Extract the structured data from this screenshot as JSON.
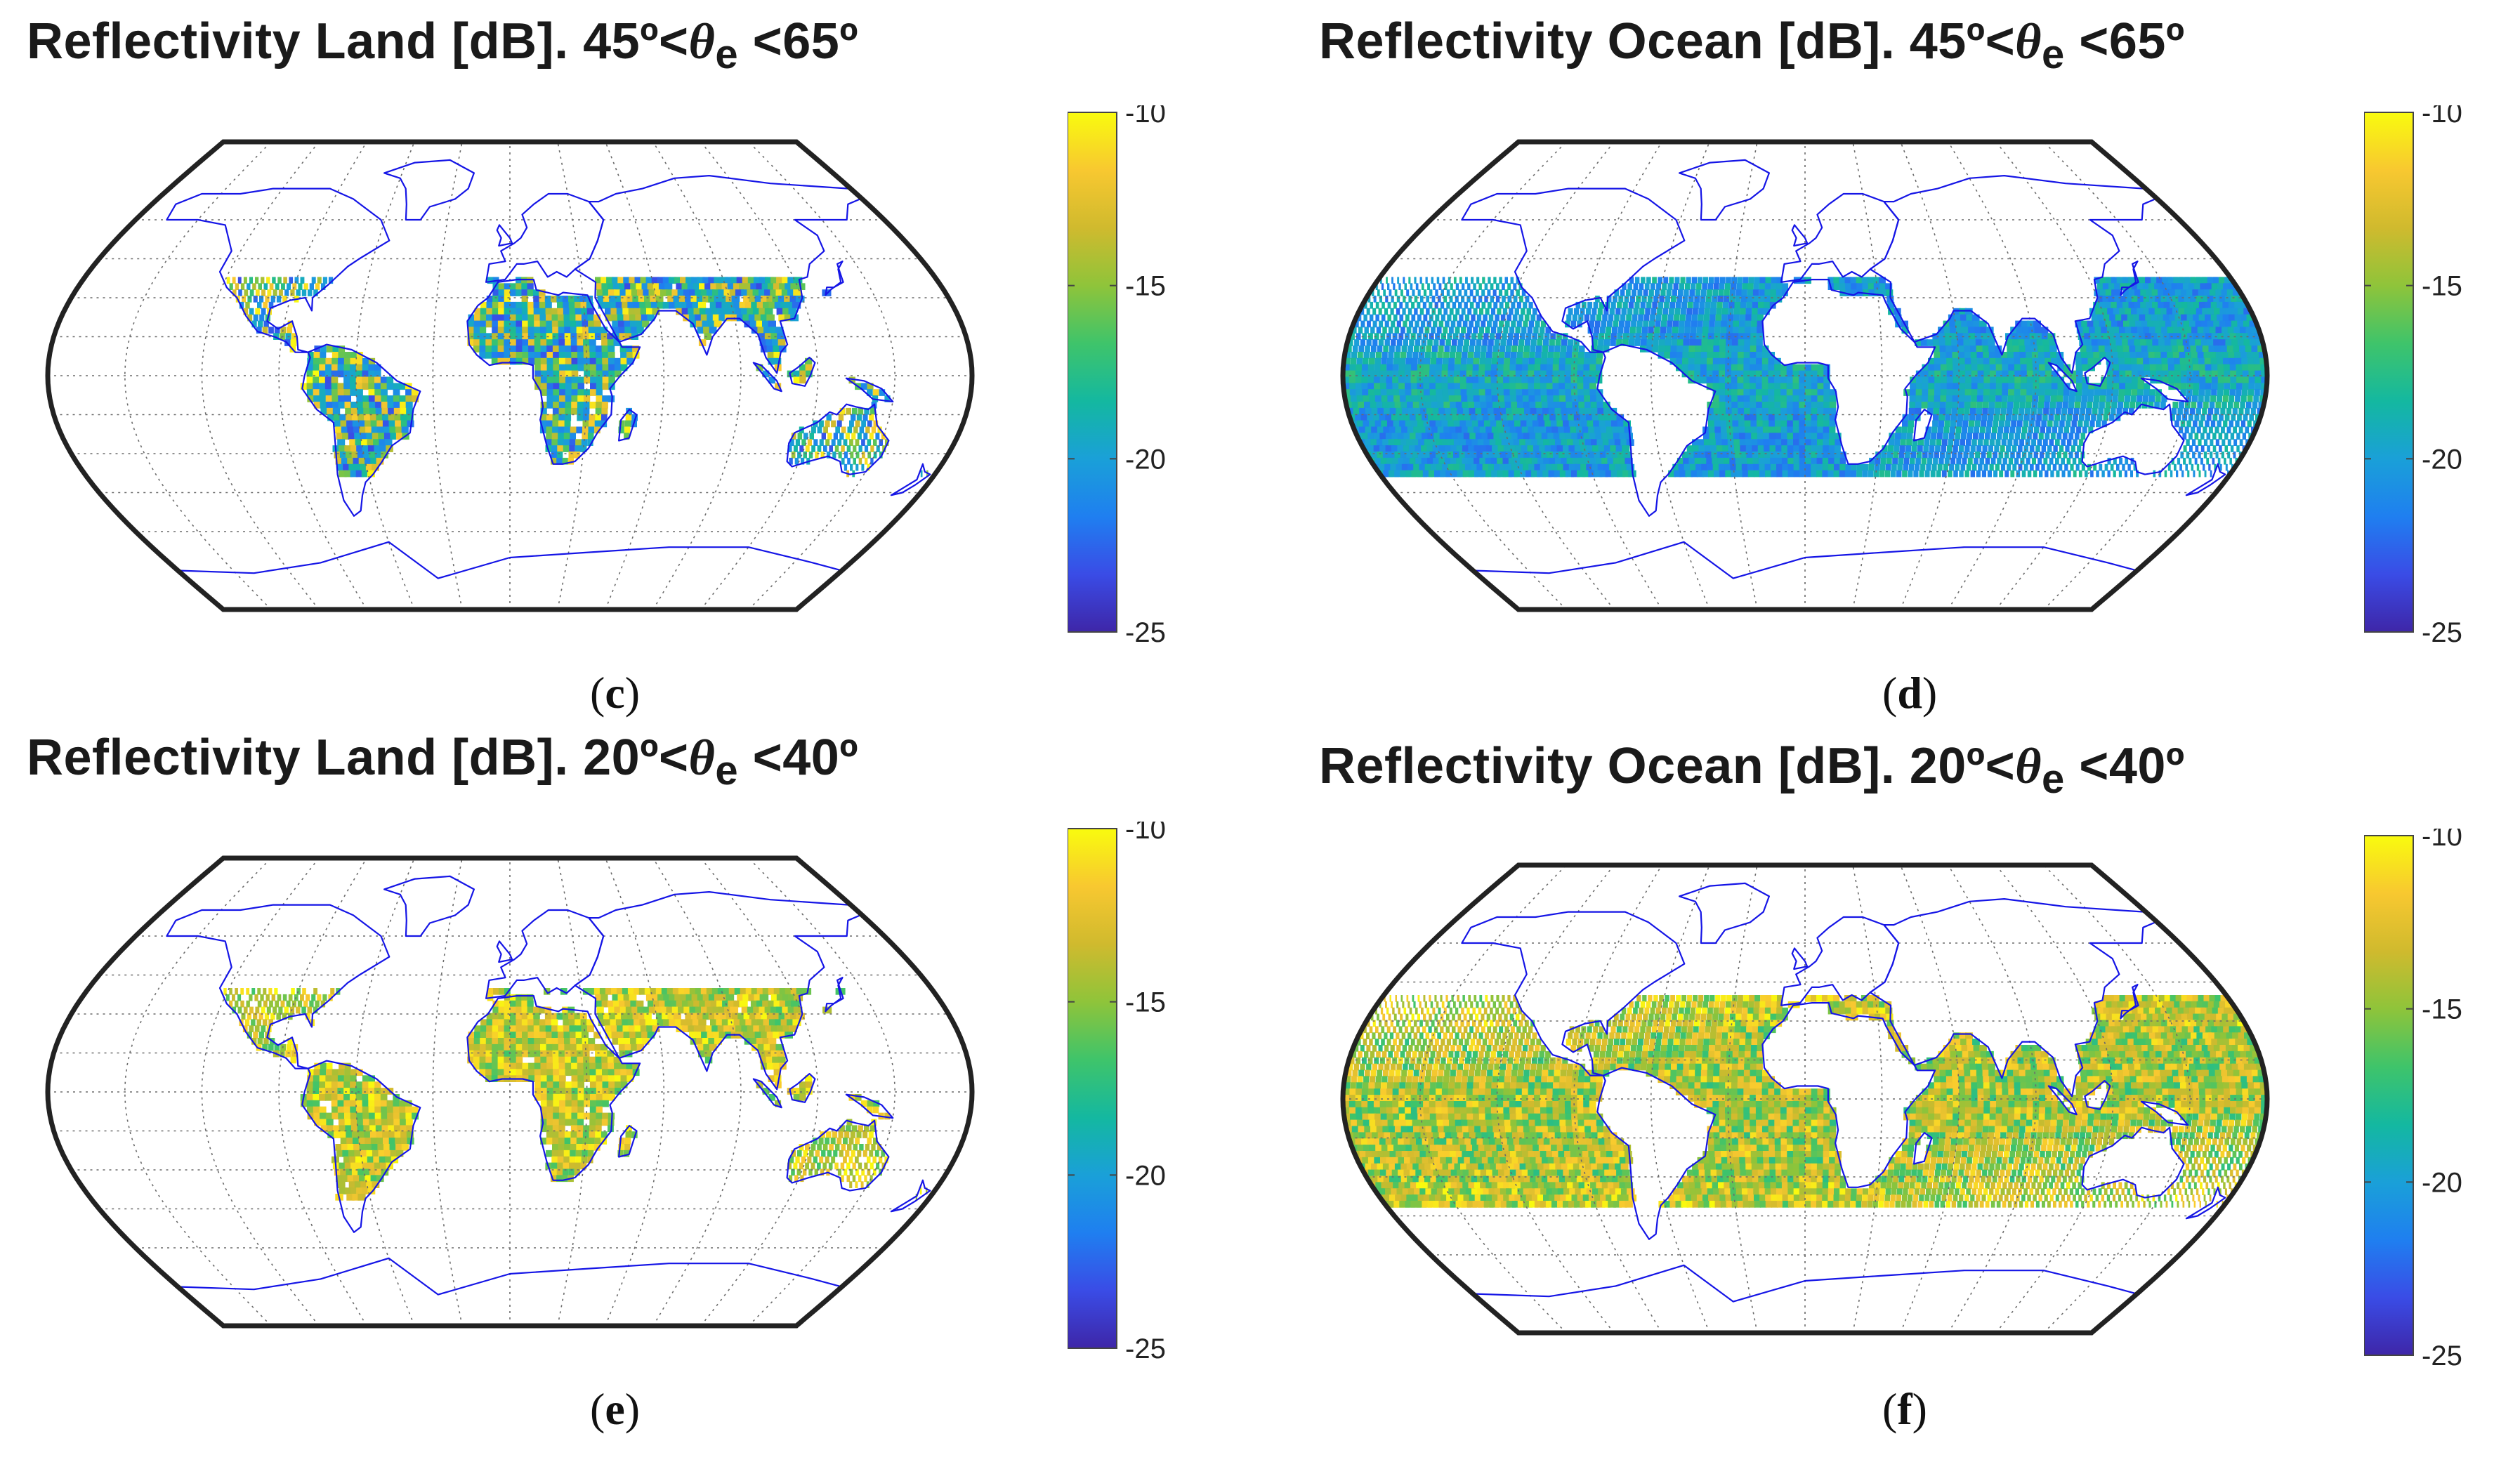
{
  "panels": [
    {
      "id": "c",
      "title_prefix": "Reflectivity Land [dB]. 45º<",
      "theta": "θ",
      "sub": "e",
      "title_suffix": " <65º",
      "caption_letter": "c",
      "surface": "land",
      "theme": "low"
    },
    {
      "id": "d",
      "title_prefix": "Reflectivity Ocean [dB]. 45º<",
      "theta": "θ",
      "sub": "e",
      "title_suffix": " <65º",
      "caption_letter": "d",
      "surface": "ocean",
      "theme": "low"
    },
    {
      "id": "e",
      "title_prefix": "Reflectivity Land [dB]. 20º<",
      "theta": "θ",
      "sub": "e",
      "title_suffix": " <40º",
      "caption_letter": "e",
      "surface": "land",
      "theme": "high"
    },
    {
      "id": "f",
      "title_prefix": "Reflectivity Ocean [dB]. 20º<",
      "theta": "θ",
      "sub": "e",
      "title_suffix": " <40º",
      "caption_letter": "f",
      "surface": "ocean",
      "theme": "high"
    }
  ],
  "colorbar": {
    "ticks": [
      "-10",
      "-15",
      "-20",
      "-25"
    ],
    "min": -25,
    "max": -10,
    "colors": [
      "#3e26a8",
      "#3a4ce6",
      "#1f7ff0",
      "#1aa0d8",
      "#14b8a0",
      "#3fc46a",
      "#8fc43a",
      "#d0ba2e",
      "#f8c830",
      "#f9fb0e"
    ]
  },
  "colors": {
    "coast": "#1515e6",
    "frame": "#222222",
    "grid": "#6b6b6b"
  }
}
